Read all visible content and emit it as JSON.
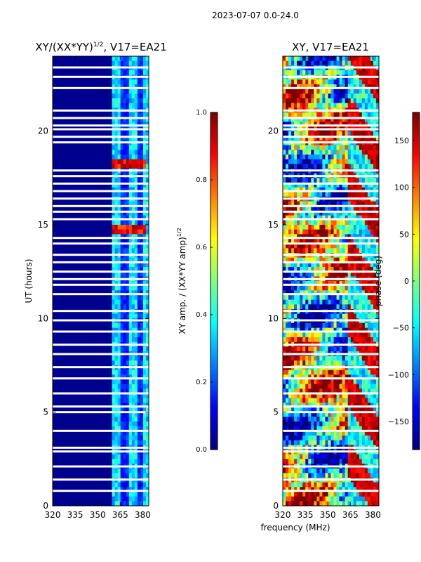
{
  "figure": {
    "suptitle": "2023-07-07 0.0-24.0",
    "xlabel_shared": "frequency (MHz)"
  },
  "colors": {
    "jet": [
      "#00007f",
      "#0000ff",
      "#007fff",
      "#00ffff",
      "#7fff7f",
      "#ffff00",
      "#ff7f00",
      "#ff0000",
      "#7f0000"
    ],
    "background": "#00008f",
    "gap": "#ffffff"
  },
  "chart_data": [
    {
      "type": "heatmap",
      "title_main": "XY/(XX*YY)",
      "title_sup": "1/2",
      "title_tail": ", V17=EA21",
      "xlabel": "",
      "ylabel": "UT (hours)",
      "xlim": [
        320,
        384
      ],
      "ylim": [
        0,
        24
      ],
      "xticks": [
        320,
        335,
        350,
        365,
        380
      ],
      "yticks": [
        0,
        5,
        10,
        15,
        20
      ],
      "active_band_mhz": [
        360,
        384
      ],
      "bright_rows_ut": [
        14.6,
        14.9,
        18.1,
        18.4
      ],
      "colorbar": {
        "label": "XY amp. / (XX*YY amp)",
        "label_sup": "1/2",
        "range": [
          0.0,
          1.0
        ],
        "ticks": [
          "0.0",
          "0.2",
          "0.4",
          "0.6",
          "0.8",
          "1.0"
        ]
      }
    },
    {
      "type": "heatmap",
      "title_main": "XY, V17=EA21",
      "xlabel": "",
      "ylabel": "",
      "xlim": [
        320,
        384
      ],
      "ylim": [
        0,
        24
      ],
      "xticks": [
        320,
        335,
        350,
        365,
        380
      ],
      "yticks": [
        0,
        5,
        10,
        15,
        20
      ],
      "colorbar": {
        "label": "phase (deg)",
        "range": [
          -180,
          180
        ],
        "ticks": [
          "−150",
          "−100",
          "−50",
          "0",
          "50",
          "100",
          "150"
        ],
        "tick_values": [
          -150,
          -100,
          -50,
          0,
          50,
          100,
          150
        ]
      }
    }
  ],
  "gaps_ut": [
    0.8,
    1.4,
    2.1,
    2.9,
    3.1,
    4.0,
    5.0,
    5.3,
    6.0,
    6.8,
    7.4,
    8.1,
    8.6,
    9.3,
    9.9,
    10.4,
    11.3,
    11.8,
    12.1,
    12.5,
    13.0,
    13.4,
    14.0,
    14.3,
    15.3,
    15.7,
    16.0,
    16.4,
    16.8,
    17.2,
    17.6,
    17.9,
    19.4,
    19.7,
    20.1,
    20.3,
    20.7,
    21.1,
    22.3,
    22.9,
    23.4
  ]
}
